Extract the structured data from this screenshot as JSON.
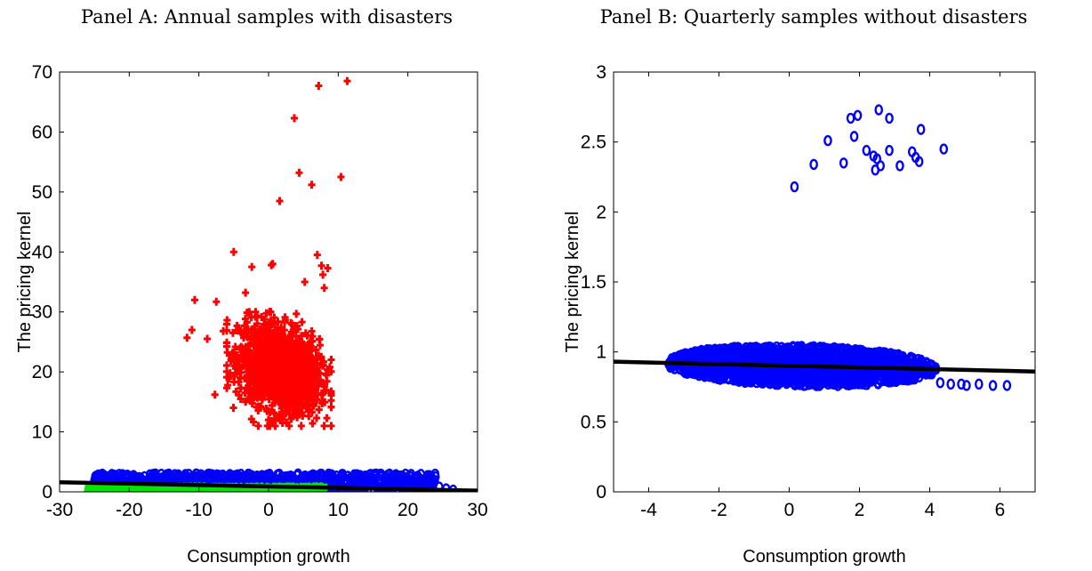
{
  "chart_data": [
    {
      "type": "scatter",
      "title": "Panel A: Annual samples with disasters",
      "xlabel": "Consumption growth",
      "ylabel": "The pricing kernel",
      "xlim": [
        -30,
        30
      ],
      "ylim": [
        0,
        70
      ],
      "xticks": [
        -30,
        -20,
        -10,
        0,
        10,
        20,
        30
      ],
      "yticks": [
        0,
        10,
        20,
        30,
        40,
        50,
        60,
        70
      ],
      "grid": false,
      "series": [
        {
          "color": "#ff0000",
          "marker": "plus",
          "points": [
            [
              11.3,
              68.5
            ],
            [
              7.2,
              67.7
            ],
            [
              3.7,
              62.3
            ],
            [
              4.4,
              53.2
            ],
            [
              10.4,
              52.5
            ],
            [
              6.2,
              51.2
            ],
            [
              1.6,
              48.5
            ],
            [
              -5.0,
              40.0
            ],
            [
              7.0,
              39.5
            ],
            [
              0.6,
              38.0
            ],
            [
              0.4,
              37.8
            ],
            [
              -2.4,
              37.5
            ],
            [
              8.5,
              37.3
            ],
            [
              7.6,
              37.7
            ],
            [
              7.8,
              36.2
            ],
            [
              5.2,
              35.0
            ],
            [
              8.0,
              34.0
            ],
            [
              -3.3,
              33.2
            ],
            [
              -10.6,
              32.0
            ],
            [
              -7.5,
              31.7
            ],
            [
              -11.0,
              27.0
            ],
            [
              -11.7,
              25.7
            ],
            [
              -8.8,
              25.5
            ],
            [
              -6.5,
              26.8
            ],
            [
              -7.7,
              16.2
            ],
            [
              6.0,
              25.0
            ],
            [
              5.5,
              23.0
            ],
            [
              8.8,
              20.8
            ],
            [
              7.8,
              18.2
            ],
            [
              -4.0,
              15.5
            ],
            [
              1.0,
              12.0
            ],
            [
              2.0,
              11.5
            ]
          ],
          "clusters": [
            {
              "x": [
                -6,
                9
              ],
              "y": [
                11,
                30
              ],
              "center": [
                1.5,
                20.5
              ],
              "shape": "tilted-blob"
            }
          ]
        },
        {
          "color": "#0000ff",
          "marker": "diamond",
          "points": [
            [
              25.5,
              0.5
            ],
            [
              26.5,
              0.3
            ],
            [
              24.5,
              0.8
            ]
          ],
          "clusters": [
            {
              "x": [
                -25,
                24
              ],
              "y": [
                0.3,
                3.0
              ],
              "center": [
                0,
                1.6
              ],
              "shape": "band"
            }
          ]
        },
        {
          "color": "#00e600",
          "marker": "x",
          "points": [],
          "clusters": [
            {
              "x": [
                -26,
                8
              ],
              "y": [
                -0.3,
                1.0
              ],
              "center": [
                -9,
                0.3
              ],
              "shape": "band"
            }
          ]
        }
      ],
      "fit_line": {
        "color": "#000000",
        "from": [
          -30,
          1.6
        ],
        "to": [
          30,
          0.2
        ]
      }
    },
    {
      "type": "scatter",
      "title": "Panel B: Quarterly samples without disasters",
      "xlabel": "Consumption growth",
      "ylabel": "The pricing kernel",
      "xlim": [
        -5,
        7
      ],
      "ylim": [
        0,
        3
      ],
      "xticks": [
        -4,
        -2,
        0,
        2,
        4,
        6
      ],
      "yticks": [
        0,
        0.5,
        1,
        1.5,
        2,
        2.5,
        3
      ],
      "grid": false,
      "series": [
        {
          "color": "#0000ff",
          "marker": "diamond",
          "points": [
            [
              0.15,
              2.18
            ],
            [
              0.7,
              2.34
            ],
            [
              1.1,
              2.51
            ],
            [
              1.55,
              2.35
            ],
            [
              1.75,
              2.67
            ],
            [
              1.95,
              2.69
            ],
            [
              1.85,
              2.54
            ],
            [
              2.2,
              2.44
            ],
            [
              2.4,
              2.4
            ],
            [
              2.5,
              2.38
            ],
            [
              2.45,
              2.3
            ],
            [
              2.6,
              2.33
            ],
            [
              2.55,
              2.73
            ],
            [
              2.85,
              2.67
            ],
            [
              2.85,
              2.44
            ],
            [
              3.15,
              2.33
            ],
            [
              3.5,
              2.43
            ],
            [
              3.6,
              2.39
            ],
            [
              3.7,
              2.36
            ],
            [
              3.75,
              2.59
            ],
            [
              4.4,
              2.45
            ],
            [
              4.9,
              0.77
            ],
            [
              5.05,
              0.76
            ],
            [
              5.4,
              0.77
            ],
            [
              5.8,
              0.76
            ],
            [
              6.2,
              0.76
            ],
            [
              4.6,
              0.77
            ],
            [
              4.3,
              0.78
            ]
          ],
          "clusters": [
            {
              "x": [
                -3.5,
                4.2
              ],
              "y": [
                0.76,
                1.04
              ],
              "center": [
                0.4,
                0.9
              ],
              "shape": "ellipse"
            }
          ]
        }
      ],
      "fit_line": {
        "color": "#000000",
        "from": [
          -5,
          0.93
        ],
        "to": [
          7,
          0.86
        ]
      }
    }
  ]
}
